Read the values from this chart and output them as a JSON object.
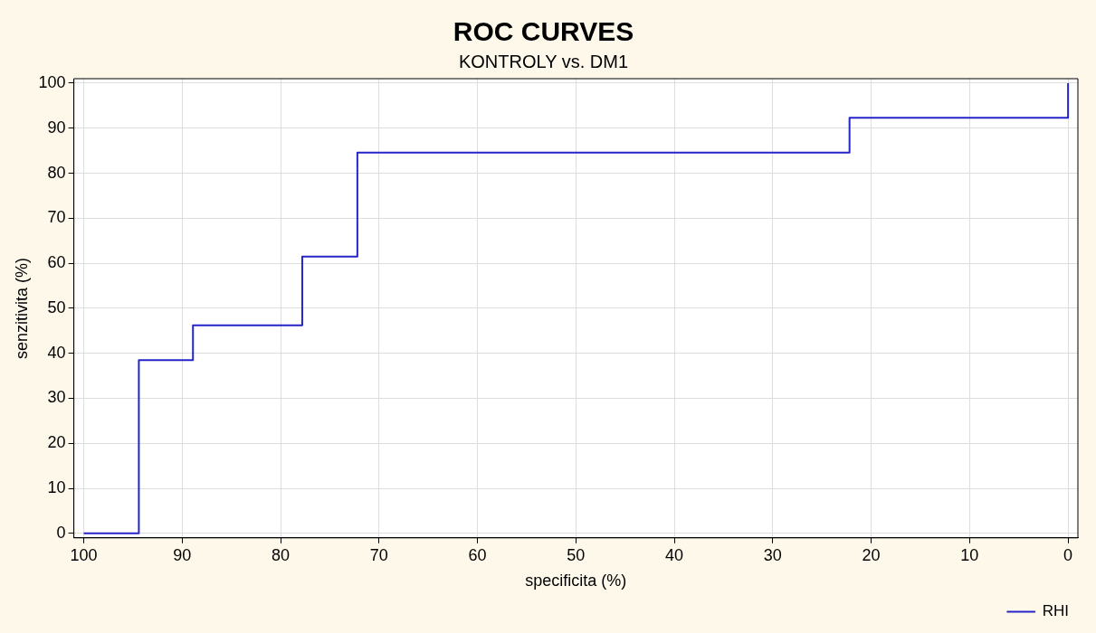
{
  "chart_data": {
    "type": "step",
    "title": "ROC CURVES",
    "subtitle": "KONTROLY vs. DM1",
    "xlabel": "specificita (%)",
    "ylabel": "senzitivita (%)",
    "x": [
      100,
      94.4,
      88.9,
      77.8,
      72.2,
      22.2,
      0
    ],
    "series": [
      {
        "name": "RHI",
        "color": "#2424c8",
        "values": [
          0,
          38.5,
          46.2,
          61.5,
          84.6,
          92.3,
          100
        ]
      }
    ],
    "xlim": [
      101,
      -1
    ],
    "xticks": [
      100,
      90,
      80,
      70,
      60,
      50,
      40,
      30,
      20,
      10,
      0
    ],
    "ylim": [
      -1,
      101
    ],
    "yticks": [
      0,
      10,
      20,
      30,
      40,
      50,
      60,
      70,
      80,
      90,
      100
    ],
    "grid": true,
    "legend": "bottom right"
  }
}
